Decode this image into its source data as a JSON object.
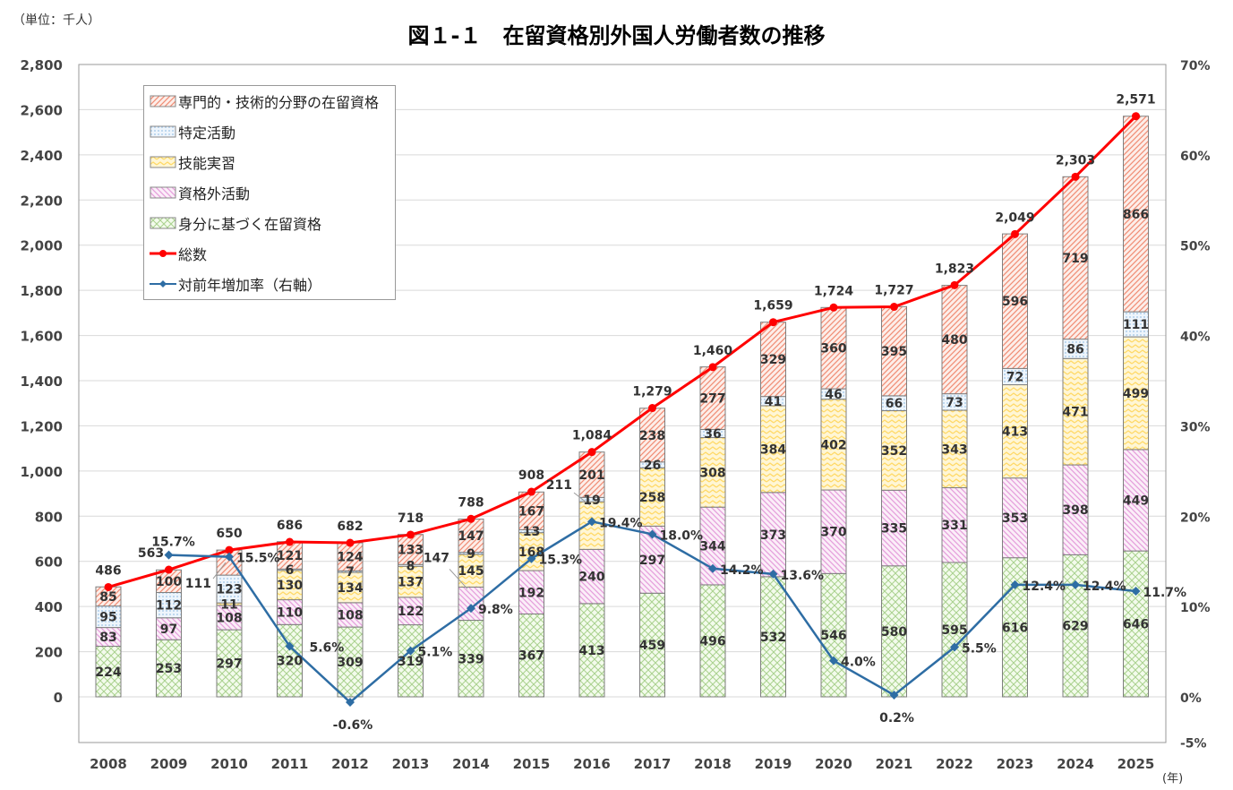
{
  "chart_data": {
    "type": "bar",
    "stacked": true,
    "title": "図１-１　在留資格別外国人労働者数の推移",
    "unit_label": "（単位：千人）",
    "x_unit_label": "(年)",
    "categories": [
      "2008",
      "2009",
      "2010",
      "2011",
      "2012",
      "2013",
      "2014",
      "2015",
      "2016",
      "2017",
      "2018",
      "2019",
      "2020",
      "2021",
      "2022",
      "2023",
      "2024",
      "2025"
    ],
    "y_left": {
      "range": [
        -200,
        2800
      ],
      "ticks": [
        "0",
        "200",
        "400",
        "600",
        "800",
        "1,000",
        "1,200",
        "1,400",
        "1,600",
        "1,800",
        "2,000",
        "2,200",
        "2,400",
        "2,600",
        "2,800"
      ]
    },
    "y_right": {
      "range": [
        -5,
        70
      ],
      "ticks": [
        "-5%",
        "0%",
        "10%",
        "20%",
        "30%",
        "40%",
        "50%",
        "60%",
        "70%"
      ]
    },
    "grid": true,
    "legend_placement": "top-left",
    "series": [
      {
        "name": "身分に基づく在留資格",
        "color": "#a9d18e",
        "values": [
          224,
          253,
          297,
          320,
          309,
          319,
          339,
          367,
          413,
          459,
          496,
          532,
          546,
          580,
          595,
          616,
          629,
          646
        ]
      },
      {
        "name": "資格外活動",
        "color": "#e59edb",
        "values": [
          83,
          97,
          108,
          110,
          108,
          122,
          147,
          192,
          240,
          297,
          344,
          373,
          370,
          335,
          331,
          353,
          398,
          449
        ]
      },
      {
        "name": "技能実習",
        "color": "#ffd966",
        "values": [
          null,
          null,
          11,
          130,
          134,
          137,
          145,
          168,
          211,
          258,
          308,
          384,
          402,
          352,
          343,
          413,
          471,
          499
        ]
      },
      {
        "name": "特定活動",
        "color": "#9dc3e6",
        "values": [
          95,
          112,
          123,
          6,
          7,
          8,
          9,
          13,
          19,
          26,
          36,
          41,
          46,
          66,
          73,
          72,
          86,
          111
        ]
      },
      {
        "name": "専門的・技術的分野の在留資格",
        "color": "#f08c74",
        "values": [
          85,
          100,
          111,
          121,
          124,
          133,
          147,
          167,
          201,
          238,
          277,
          329,
          360,
          395,
          480,
          596,
          719,
          866
        ]
      }
    ],
    "totals": {
      "name": "総数",
      "color": "#ff0000",
      "values": [
        486,
        563,
        650,
        686,
        682,
        718,
        788,
        908,
        1084,
        1279,
        1460,
        1659,
        1724,
        1727,
        1823,
        2049,
        2303,
        2571
      ],
      "labels": [
        "486",
        "563",
        "650",
        "686",
        "682",
        "718",
        "788",
        "908",
        "1,084",
        "1,279",
        "1,460",
        "1,659",
        "1,724",
        "1,727",
        "1,823",
        "2,049",
        "2,303",
        "2,571"
      ]
    },
    "growth": {
      "name": "対前年増加率（右軸）",
      "color": "#2e6da4",
      "axis": "right",
      "values": [
        null,
        15.7,
        15.5,
        5.6,
        -0.6,
        5.1,
        9.8,
        15.3,
        19.4,
        18.0,
        14.2,
        13.6,
        4.0,
        0.2,
        5.5,
        12.4,
        12.4,
        11.7
      ],
      "labels": [
        "",
        "15.7%",
        "15.5%",
        "5.6%",
        "-0.6%",
        "5.1%",
        "9.8%",
        "15.3%",
        "19.4%",
        "18.0%",
        "14.2%",
        "13.6%",
        "4.0%",
        "0.2%",
        "5.5%",
        "12.4%",
        "12.4%",
        "11.7%"
      ]
    }
  }
}
